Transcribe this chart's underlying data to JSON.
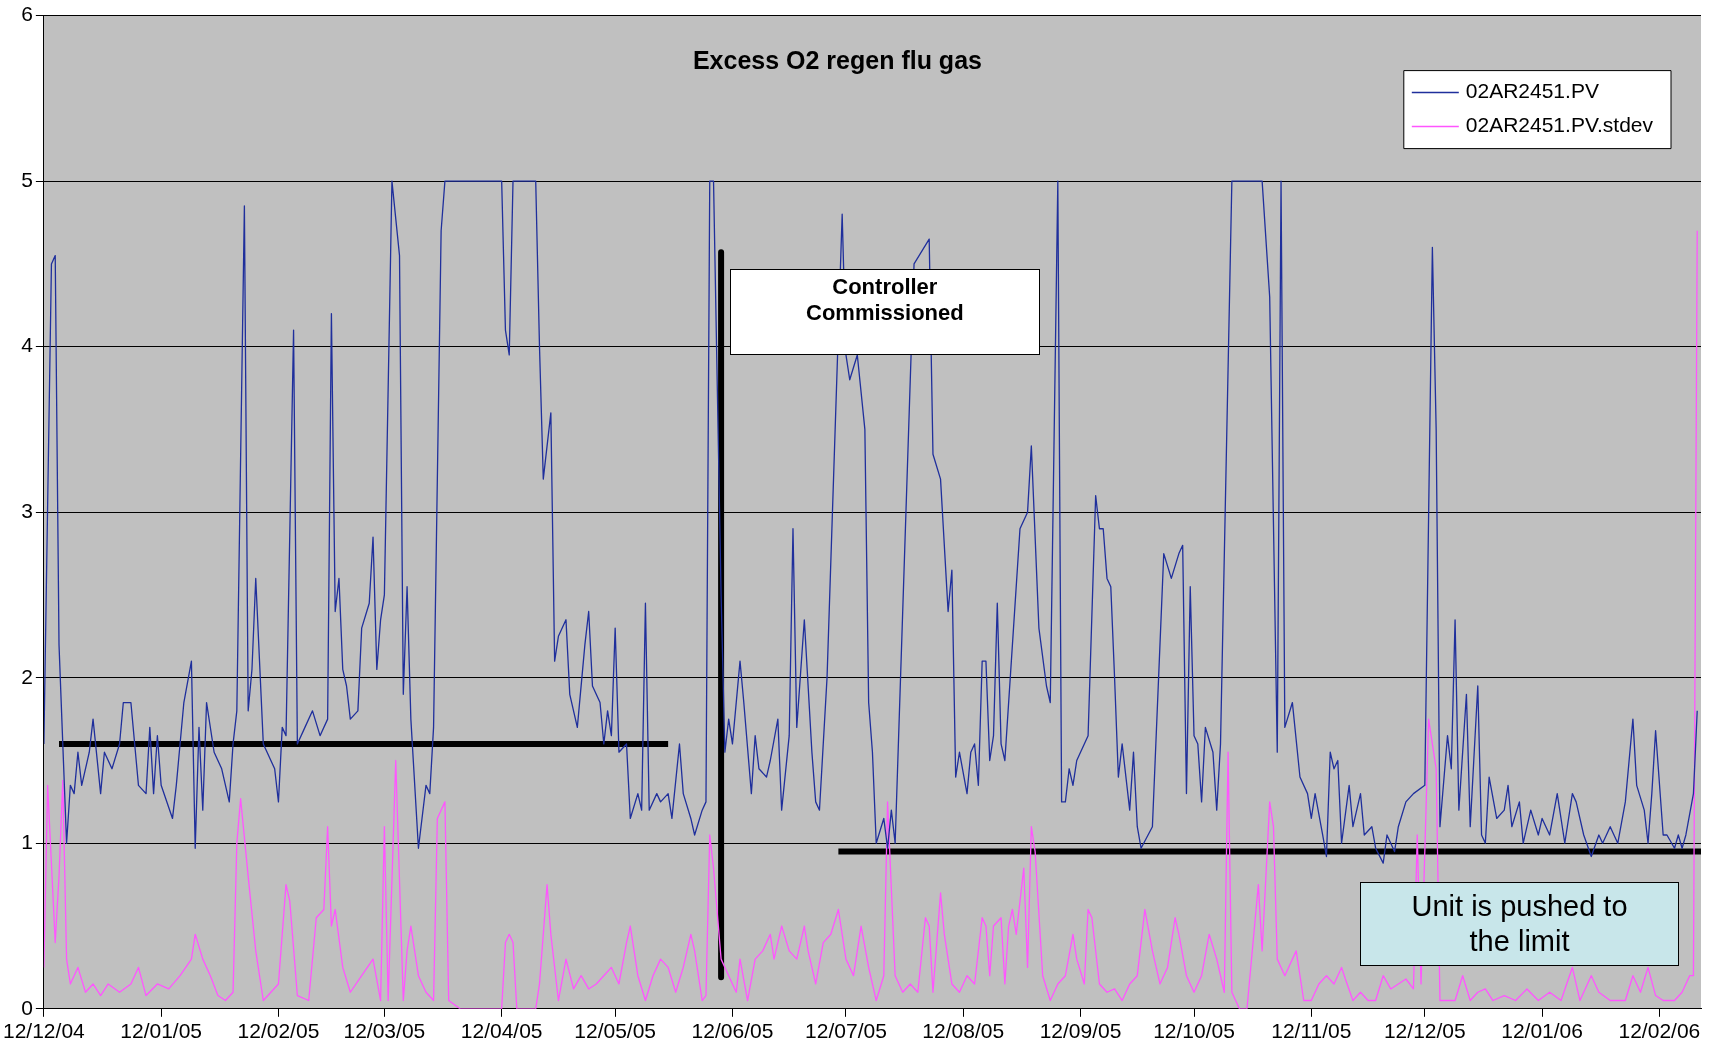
{
  "chart_data": {
    "type": "line",
    "title": "Excess O2 regen flu gas",
    "legend": "top right",
    "grid": "y",
    "xlim": [
      "2004-12-12",
      "2006-02-23"
    ],
    "ylim": [
      0,
      6
    ],
    "yticks": [
      0,
      1,
      2,
      3,
      4,
      5,
      6
    ],
    "xticks": [
      {
        "value": "2004-12-12",
        "label": "12/12/04"
      },
      {
        "value": "2005-01-12",
        "label": "12/01/05"
      },
      {
        "value": "2005-02-12",
        "label": "12/02/05"
      },
      {
        "value": "2005-03-12",
        "label": "12/03/05"
      },
      {
        "value": "2005-04-12",
        "label": "12/04/05"
      },
      {
        "value": "2005-05-12",
        "label": "12/05/05"
      },
      {
        "value": "2005-06-12",
        "label": "12/06/05"
      },
      {
        "value": "2005-07-12",
        "label": "12/07/05"
      },
      {
        "value": "2005-08-12",
        "label": "12/08/05"
      },
      {
        "value": "2005-09-12",
        "label": "12/09/05"
      },
      {
        "value": "2005-10-12",
        "label": "12/10/05"
      },
      {
        "value": "2005-11-12",
        "label": "12/11/05"
      },
      {
        "value": "2005-12-12",
        "label": "12/12/05"
      },
      {
        "value": "2006-01-12",
        "label": "12/01/06"
      },
      {
        "value": "2006-02-12",
        "label": "12/02/06"
      }
    ],
    "annotations": [
      "Controller Commissioned",
      "Unit is pushed to the limit"
    ],
    "series": [
      {
        "name": "02AR2451.PV",
        "color": "#1f2f9c",
        "x": [
          "2004-12-12",
          "2004-12-14",
          "2004-12-15",
          "2004-12-16",
          "2004-12-18",
          "2004-12-19",
          "2004-12-20",
          "2004-12-21",
          "2004-12-22",
          "2004-12-24",
          "2004-12-25",
          "2004-12-27",
          "2004-12-28",
          "2004-12-30",
          "2005-01-01",
          "2005-01-02",
          "2005-01-04",
          "2005-01-06",
          "2005-01-08",
          "2005-01-09",
          "2005-01-10",
          "2005-01-11",
          "2005-01-12",
          "2005-01-15",
          "2005-01-16",
          "2005-01-18",
          "2005-01-20",
          "2005-01-21",
          "2005-01-22",
          "2005-01-23",
          "2005-01-24",
          "2005-01-26",
          "2005-01-28",
          "2005-01-30",
          "2005-01-31",
          "2005-02-01",
          "2005-02-03",
          "2005-02-04",
          "2005-02-05",
          "2005-02-06",
          "2005-02-08",
          "2005-02-09",
          "2005-02-11",
          "2005-02-12",
          "2005-02-13",
          "2005-02-14",
          "2005-02-16",
          "2005-02-17",
          "2005-02-19",
          "2005-02-21",
          "2005-02-23",
          "2005-02-25",
          "2005-02-26",
          "2005-02-27",
          "2005-02-28",
          "2005-03-01",
          "2005-03-02",
          "2005-03-03",
          "2005-03-05",
          "2005-03-06",
          "2005-03-08",
          "2005-03-09",
          "2005-03-10",
          "2005-03-11",
          "2005-03-12",
          "2005-03-14",
          "2005-03-16",
          "2005-03-17",
          "2005-03-18",
          "2005-03-19",
          "2005-03-21",
          "2005-03-23",
          "2005-03-24",
          "2005-03-25",
          "2005-03-27",
          "2005-03-28",
          "2005-04-12",
          "2005-04-13",
          "2005-04-14",
          "2005-04-15",
          "2005-04-21",
          "2005-04-22",
          "2005-04-23",
          "2005-04-25",
          "2005-04-26",
          "2005-04-27",
          "2005-04-29",
          "2005-04-30",
          "2005-05-02",
          "2005-05-04",
          "2005-05-05",
          "2005-05-06",
          "2005-05-08",
          "2005-05-09",
          "2005-05-10",
          "2005-05-11",
          "2005-05-12",
          "2005-05-13",
          "2005-05-15",
          "2005-05-16",
          "2005-05-18",
          "2005-05-19",
          "2005-05-20",
          "2005-05-21",
          "2005-05-23",
          "2005-05-24",
          "2005-05-26",
          "2005-05-27",
          "2005-05-29",
          "2005-05-30",
          "2005-06-01",
          "2005-06-02",
          "2005-06-04",
          "2005-06-05",
          "2005-06-06",
          "2005-06-07",
          "2005-06-09",
          "2005-06-10",
          "2005-06-11",
          "2005-06-12",
          "2005-06-14",
          "2005-06-15",
          "2005-06-17",
          "2005-06-18",
          "2005-06-19",
          "2005-06-21",
          "2005-06-22",
          "2005-06-24",
          "2005-06-25",
          "2005-06-27",
          "2005-06-28",
          "2005-06-29",
          "2005-07-01",
          "2005-07-03",
          "2005-07-04",
          "2005-07-05",
          "2005-07-07",
          "2005-07-09",
          "2005-07-11",
          "2005-07-12",
          "2005-07-13",
          "2005-07-15",
          "2005-07-17",
          "2005-07-18",
          "2005-07-19",
          "2005-07-20",
          "2005-07-22",
          "2005-07-23",
          "2005-07-24",
          "2005-07-25",
          "2005-07-27",
          "2005-07-30",
          "2005-08-01",
          "2005-08-03",
          "2005-08-04",
          "2005-08-06",
          "2005-08-08",
          "2005-08-09",
          "2005-08-10",
          "2005-08-11",
          "2005-08-13",
          "2005-08-14",
          "2005-08-15",
          "2005-08-16",
          "2005-08-17",
          "2005-08-18",
          "2005-08-19",
          "2005-08-20",
          "2005-08-21",
          "2005-08-22",
          "2005-08-23",
          "2005-08-26",
          "2005-08-27",
          "2005-08-29",
          "2005-08-30",
          "2005-09-01",
          "2005-09-03",
          "2005-09-04",
          "2005-09-06",
          "2005-09-07",
          "2005-09-08",
          "2005-09-09",
          "2005-09-10",
          "2005-09-11",
          "2005-09-14",
          "2005-09-16",
          "2005-09-17",
          "2005-09-18",
          "2005-09-19",
          "2005-09-20",
          "2005-09-21",
          "2005-09-22",
          "2005-09-23",
          "2005-09-25",
          "2005-09-26",
          "2005-09-27",
          "2005-09-28",
          "2005-10-01",
          "2005-10-04",
          "2005-10-06",
          "2005-10-08",
          "2005-10-09",
          "2005-10-10",
          "2005-10-11",
          "2005-10-12",
          "2005-10-13",
          "2005-10-14",
          "2005-10-15",
          "2005-10-17",
          "2005-10-18",
          "2005-10-19",
          "2005-10-22",
          "2005-10-30",
          "2005-11-01",
          "2005-11-03",
          "2005-11-04",
          "2005-11-05",
          "2005-11-07",
          "2005-11-09",
          "2005-11-11",
          "2005-11-12",
          "2005-11-13",
          "2005-11-15",
          "2005-11-16",
          "2005-11-17",
          "2005-11-18",
          "2005-11-19",
          "2005-11-20",
          "2005-11-22",
          "2005-11-23",
          "2005-11-25",
          "2005-11-26",
          "2005-11-28",
          "2005-11-29",
          "2005-12-01",
          "2005-12-02",
          "2005-12-04",
          "2005-12-05",
          "2005-12-07",
          "2005-12-09",
          "2005-12-12",
          "2005-12-14",
          "2005-12-15",
          "2005-12-16",
          "2005-12-18",
          "2005-12-19",
          "2005-12-20",
          "2005-12-21",
          "2005-12-23",
          "2005-12-24",
          "2005-12-26",
          "2005-12-27",
          "2005-12-28",
          "2005-12-29",
          "2005-12-31",
          "2006-01-02",
          "2006-01-03",
          "2006-01-04",
          "2006-01-06",
          "2006-01-07",
          "2006-01-09",
          "2006-01-11",
          "2006-01-12",
          "2006-01-14",
          "2006-01-16",
          "2006-01-18",
          "2006-01-20",
          "2006-01-21",
          "2006-01-23",
          "2006-01-25",
          "2006-01-27",
          "2006-01-28",
          "2006-01-30",
          "2006-02-01",
          "2006-02-03",
          "2006-02-05",
          "2006-02-06",
          "2006-02-08",
          "2006-02-09",
          "2006-02-10",
          "2006-02-11",
          "2006-02-13",
          "2006-02-14",
          "2006-02-16",
          "2006-02-17",
          "2006-02-18",
          "2006-02-19",
          "2006-02-21",
          "2006-02-22"
        ],
        "values": [
          1.6,
          4.5,
          4.55,
          2.2,
          1.0,
          1.35,
          1.3,
          1.55,
          1.35,
          1.55,
          1.75,
          1.3,
          1.55,
          1.45,
          1.6,
          1.85,
          1.85,
          1.35,
          1.3,
          1.7,
          1.3,
          1.65,
          1.35,
          1.15,
          1.35,
          1.85,
          2.1,
          0.97,
          1.7,
          1.2,
          1.85,
          1.55,
          1.45,
          1.25,
          1.6,
          1.8,
          4.85,
          1.8,
          2.05,
          2.6,
          1.6,
          1.55,
          1.45,
          1.25,
          1.7,
          1.65,
          4.1,
          1.6,
          1.7,
          1.8,
          1.65,
          1.75,
          4.2,
          2.4,
          2.6,
          2.05,
          1.95,
          1.75,
          1.8,
          2.3,
          2.45,
          2.85,
          2.05,
          2.35,
          2.5,
          5.0,
          4.55,
          1.9,
          2.55,
          1.75,
          0.97,
          1.35,
          1.3,
          1.7,
          4.7,
          5.0,
          5.0,
          4.1,
          3.95,
          5.0,
          5.0,
          4.0,
          3.2,
          3.6,
          2.1,
          2.25,
          2.35,
          1.9,
          1.7,
          2.2,
          2.4,
          1.95,
          1.85,
          1.6,
          1.8,
          1.65,
          2.3,
          1.55,
          1.6,
          1.15,
          1.3,
          1.2,
          2.45,
          1.2,
          1.3,
          1.25,
          1.3,
          1.15,
          1.6,
          1.3,
          1.15,
          1.05,
          1.2,
          1.25,
          5.0,
          5.0,
          2.5,
          1.55,
          1.75,
          1.6,
          2.1,
          1.85,
          1.3,
          1.65,
          1.45,
          1.4,
          1.5,
          1.75,
          1.2,
          1.65,
          2.9,
          1.7,
          2.35,
          1.55,
          1.25,
          1.2,
          2.0,
          null,
          4.8,
          3.95,
          3.8,
          3.95,
          3.5,
          1.85,
          1.55,
          1.0,
          1.15,
          0.97,
          1.2,
          1.0,
          null,
          4.5,
          null,
          4.65,
          3.35,
          3.2,
          2.4,
          2.65,
          1.4,
          1.55,
          1.3,
          1.55,
          1.6,
          1.35,
          2.1,
          2.1,
          1.5,
          1.65,
          2.45,
          1.6,
          1.5,
          null,
          2.9,
          3.0,
          3.4,
          2.3,
          1.95,
          1.85,
          5.0,
          1.25,
          1.25,
          1.45,
          1.35,
          1.5,
          1.65,
          3.1,
          2.9,
          2.9,
          2.6,
          2.55,
          2.0,
          1.4,
          1.6,
          1.2,
          1.55,
          1.1,
          0.97,
          1.1,
          2.75,
          2.6,
          2.75,
          2.8,
          1.3,
          2.55,
          1.65,
          1.6,
          1.25,
          1.7,
          1.55,
          1.2,
          1.6,
          5.0,
          5.0,
          4.3,
          1.55,
          5.0,
          1.7,
          1.85,
          1.4,
          1.3,
          1.15,
          1.3,
          1.05,
          0.92,
          1.55,
          1.45,
          1.5,
          1.0,
          1.35,
          1.1,
          1.3,
          1.05,
          1.1,
          0.97,
          0.88,
          1.05,
          0.95,
          1.1,
          1.25,
          1.3,
          1.35,
          4.6,
          3.5,
          1.1,
          1.65,
          1.45,
          2.35,
          1.2,
          1.9,
          1.1,
          1.95,
          1.05,
          1.0,
          1.4,
          1.15,
          1.2,
          1.35,
          1.1,
          1.25,
          1.0,
          1.2,
          1.05,
          1.15,
          1.05,
          1.3,
          1.0,
          1.3,
          1.25,
          1.05,
          0.92,
          1.05,
          1.0,
          1.1,
          1.0,
          1.25,
          1.75,
          1.35,
          1.2,
          1.0,
          1.3,
          1.68,
          1.05,
          1.05,
          0.97,
          1.05,
          0.97,
          1.05,
          1.3,
          1.8
        ]
      },
      {
        "name": "02AR2451.PV.stdev",
        "color": "#ff55ff",
        "x": [
          "2004-12-12",
          "2004-12-13",
          "2004-12-15",
          "2004-12-16",
          "2004-12-17",
          "2004-12-18",
          "2004-12-19",
          "2004-12-21",
          "2004-12-23",
          "2004-12-25",
          "2004-12-27",
          "2004-12-29",
          "2005-01-01",
          "2005-01-04",
          "2005-01-06",
          "2005-01-08",
          "2005-01-11",
          "2005-01-14",
          "2005-01-17",
          "2005-01-20",
          "2005-01-21",
          "2005-01-23",
          "2005-01-25",
          "2005-01-27",
          "2005-01-29",
          "2005-01-31",
          "2005-02-01",
          "2005-02-02",
          "2005-02-04",
          "2005-02-06",
          "2005-02-08",
          "2005-02-10",
          "2005-02-12",
          "2005-02-14",
          "2005-02-15",
          "2005-02-17",
          "2005-02-20",
          "2005-02-22",
          "2005-02-24",
          "2005-02-25",
          "2005-02-26",
          "2005-02-27",
          "2005-03-01",
          "2005-03-03",
          "2005-03-06",
          "2005-03-09",
          "2005-03-11",
          "2005-03-12",
          "2005-03-13",
          "2005-03-15",
          "2005-03-17",
          "2005-03-18",
          "2005-03-19",
          "2005-03-21",
          "2005-03-23",
          "2005-03-25",
          "2005-03-26",
          "2005-03-28",
          "2005-03-29",
          "2005-04-01",
          "2005-04-12",
          "2005-04-13",
          "2005-04-14",
          "2005-04-15",
          "2005-04-16",
          "2005-04-21",
          "2005-04-22",
          "2005-04-24",
          "2005-04-25",
          "2005-04-27",
          "2005-04-29",
          "2005-05-01",
          "2005-05-03",
          "2005-05-05",
          "2005-05-07",
          "2005-05-09",
          "2005-05-11",
          "2005-05-13",
          "2005-05-15",
          "2005-05-16",
          "2005-05-18",
          "2005-05-20",
          "2005-05-22",
          "2005-05-24",
          "2005-05-26",
          "2005-05-28",
          "2005-05-30",
          "2005-06-01",
          "2005-06-02",
          "2005-06-04",
          "2005-06-05",
          "2005-06-06",
          "2005-06-07",
          "2005-06-09",
          "2005-06-11",
          "2005-06-13",
          "2005-06-14",
          "2005-06-16",
          "2005-06-18",
          "2005-06-20",
          "2005-06-22",
          "2005-06-23",
          "2005-06-25",
          "2005-06-27",
          "2005-06-29",
          "2005-07-01",
          "2005-07-02",
          "2005-07-04",
          "2005-07-06",
          "2005-07-08",
          "2005-07-10",
          "2005-07-12",
          "2005-07-14",
          "2005-07-16",
          "2005-07-18",
          "2005-07-20",
          "2005-07-22",
          "2005-07-23",
          "2005-07-25",
          "2005-07-27",
          "2005-07-29",
          "2005-07-31",
          "2005-08-02",
          "2005-08-03",
          "2005-08-04",
          "2005-08-06",
          "2005-08-07",
          "2005-08-09",
          "2005-08-11",
          "2005-08-13",
          "2005-08-15",
          "2005-08-17",
          "2005-08-18",
          "2005-08-19",
          "2005-08-20",
          "2005-08-22",
          "2005-08-23",
          "2005-08-24",
          "2005-08-25",
          "2005-08-26",
          "2005-08-28",
          "2005-08-29",
          "2005-08-30",
          "2005-08-31",
          "2005-09-02",
          "2005-09-04",
          "2005-09-06",
          "2005-09-08",
          "2005-09-10",
          "2005-09-11",
          "2005-09-13",
          "2005-09-14",
          "2005-09-15",
          "2005-09-17",
          "2005-09-19",
          "2005-09-21",
          "2005-09-23",
          "2005-09-25",
          "2005-09-27",
          "2005-09-29",
          "2005-10-01",
          "2005-10-03",
          "2005-10-05",
          "2005-10-07",
          "2005-10-08",
          "2005-10-10",
          "2005-10-12",
          "2005-10-14",
          "2005-10-16",
          "2005-10-18",
          "2005-10-20",
          "2005-10-21",
          "2005-10-22",
          "2005-10-24",
          "2005-10-26",
          "2005-10-28",
          "2005-10-29",
          "2005-10-30",
          "2005-11-01",
          "2005-11-02",
          "2005-11-03",
          "2005-11-05",
          "2005-11-06",
          "2005-11-08",
          "2005-11-10",
          "2005-11-12",
          "2005-11-14",
          "2005-11-16",
          "2005-11-18",
          "2005-11-20",
          "2005-11-21",
          "2005-11-23",
          "2005-11-25",
          "2005-11-27",
          "2005-11-29",
          "2005-12-01",
          "2005-12-03",
          "2005-12-05",
          "2005-12-07",
          "2005-12-09",
          "2005-12-10",
          "2005-12-11",
          "2005-12-13",
          "2005-12-14",
          "2005-12-15",
          "2005-12-16",
          "2005-12-20",
          "2005-12-22",
          "2005-12-24",
          "2005-12-26",
          "2005-12-28",
          "2005-12-30",
          "2006-01-02",
          "2006-01-05",
          "2006-01-08",
          "2006-01-11",
          "2006-01-14",
          "2006-01-17",
          "2006-01-20",
          "2006-01-22",
          "2006-01-25",
          "2006-01-27",
          "2006-01-30",
          "2006-02-02",
          "2006-02-03",
          "2006-02-05",
          "2006-02-07",
          "2006-02-09",
          "2006-02-11",
          "2006-02-13",
          "2006-02-16",
          "2006-02-18",
          "2006-02-20",
          "2006-02-21",
          "2006-02-22"
        ],
        "values": [
          0.25,
          1.35,
          0.4,
          0.8,
          1.38,
          0.3,
          0.15,
          0.25,
          0.1,
          0.15,
          0.08,
          0.15,
          0.1,
          0.15,
          0.25,
          0.08,
          0.15,
          0.12,
          0.2,
          0.3,
          0.45,
          0.3,
          0.2,
          0.08,
          0.05,
          0.1,
          1.0,
          1.27,
          0.8,
          0.35,
          0.05,
          0.1,
          0.15,
          0.75,
          0.65,
          0.08,
          0.05,
          0.55,
          0.6,
          1.1,
          0.5,
          0.6,
          0.25,
          0.1,
          0.2,
          0.3,
          0.05,
          1.1,
          0.05,
          1.5,
          0.05,
          0.35,
          0.5,
          0.2,
          0.1,
          0.05,
          1.15,
          1.25,
          0.05,
          0,
          0,
          0.4,
          0.45,
          0.4,
          0,
          0,
          0.15,
          0.75,
          0.45,
          0.05,
          0.3,
          0.12,
          0.2,
          0.12,
          0.15,
          0.2,
          0.25,
          0.15,
          0.4,
          0.5,
          0.2,
          0.05,
          0.2,
          0.3,
          0.25,
          0.1,
          0.25,
          0.45,
          0.35,
          0.05,
          0.08,
          1.05,
          0.85,
          0.3,
          0.2,
          0.1,
          0.3,
          0.05,
          0.3,
          0.35,
          0.45,
          0.3,
          0.5,
          0.35,
          0.3,
          0.5,
          0.35,
          0.15,
          0.4,
          0.45,
          0.6,
          0.3,
          0.2,
          0.5,
          0.25,
          0.05,
          0.2,
          1.25,
          0.2,
          0.1,
          0.15,
          0.1,
          0.55,
          0.5,
          0.1,
          0.7,
          0.45,
          0.15,
          0.1,
          0.2,
          0.15,
          0.55,
          0.5,
          0.2,
          0.5,
          0.55,
          0.15,
          0.5,
          0.6,
          0.45,
          0.85,
          0.25,
          1.1,
          0.95,
          0.2,
          0.05,
          0.15,
          0.2,
          0.45,
          0.3,
          0.15,
          0.6,
          0.55,
          0.15,
          0.1,
          0.12,
          0.05,
          0.15,
          0.2,
          0.6,
          0.35,
          0.15,
          0.25,
          0.55,
          0.45,
          0.2,
          0.1,
          0.2,
          0.45,
          0.3,
          0.1,
          1.55,
          0.1,
          0,
          0,
          0.5,
          0.75,
          0.35,
          1.25,
          1.1,
          0.3,
          0.2,
          0.25,
          0.35,
          0.05,
          0.05,
          0.15,
          0.2,
          0.15,
          0.25,
          0.18,
          0.05,
          0.1,
          0.05,
          0.05,
          0.2,
          0.12,
          0.15,
          0.18,
          0.12,
          1.05,
          0.15,
          1.75,
          null,
          1.45,
          0.05,
          0.05,
          0.2,
          0.05,
          0.1,
          0.12,
          0.05,
          0.08,
          0.05,
          0.12,
          0.05,
          0.1,
          0.05,
          0.25,
          0.05,
          0.2,
          0.1,
          0.05,
          null,
          0.05,
          0.2,
          0.1,
          0.25,
          0.08,
          0.05,
          0.05,
          0.1,
          0.2,
          0.2,
          4.7
        ]
      },
      {
        "color": "#000000",
        "x": [
          "2004-12-16",
          "2005-05-26"
        ],
        "values": [
          1.6,
          1.6
        ]
      },
      {
        "color": "#000000",
        "x": [
          "2005-06-09",
          "2005-06-09"
        ],
        "values": [
          4.57,
          0.19
        ]
      },
      {
        "color": "#000000",
        "x": [
          "2005-07-10",
          "2006-02-23"
        ],
        "values": [
          0.95,
          0.95
        ]
      }
    ]
  }
}
